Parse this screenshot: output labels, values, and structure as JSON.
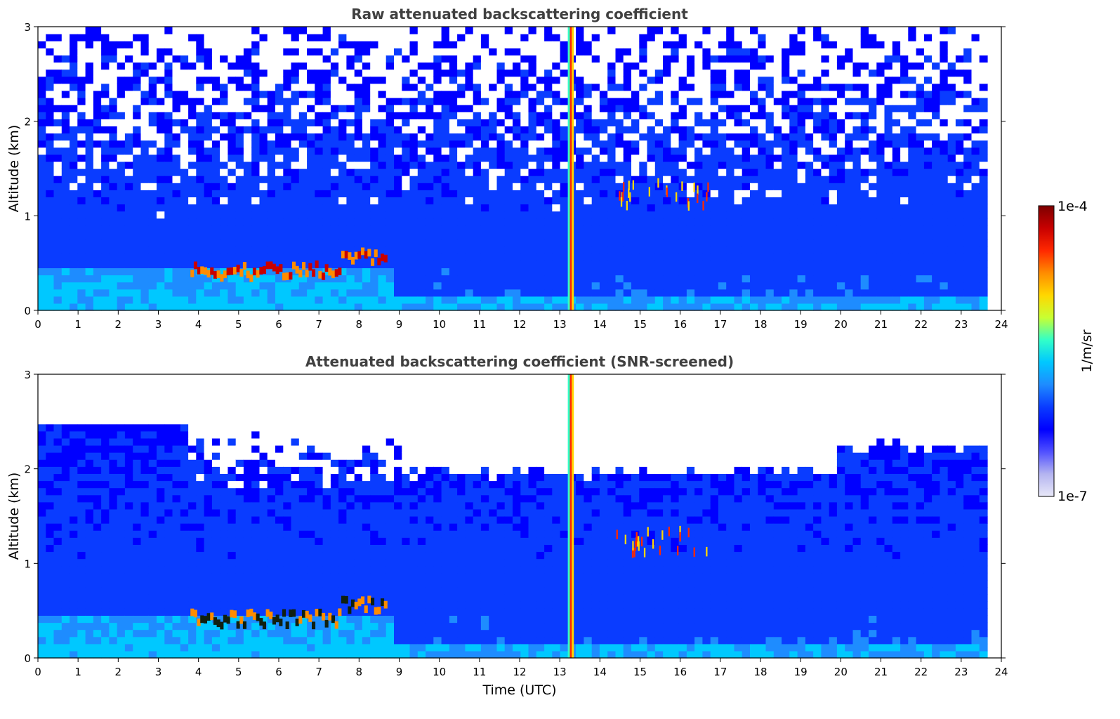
{
  "chart_data": [
    {
      "type": "heatmap",
      "title": "Raw attenuated backscattering coefficient",
      "xlabel": "",
      "ylabel": "Altitude (km)",
      "xlim": [
        0,
        24
      ],
      "ylim": [
        0,
        3
      ],
      "x_ticks": [
        "0",
        "1",
        "2",
        "3",
        "4",
        "5",
        "6",
        "7",
        "8",
        "9",
        "10",
        "11",
        "12",
        "13",
        "14",
        "15",
        "16",
        "17",
        "18",
        "19",
        "20",
        "21",
        "22",
        "23",
        "24"
      ],
      "y_ticks": [
        "0",
        "1",
        "2",
        "3"
      ],
      "data_end_time": 23.65,
      "screened": false,
      "features": [
        {
          "name": "aerosol layer",
          "x": [
            0,
            8.8
          ],
          "y": [
            0,
            0.45
          ]
        },
        {
          "name": "cloud base layer",
          "x": [
            3.8,
            8.7
          ],
          "y": [
            0.3,
            0.6
          ]
        },
        {
          "name": "precipitation streak",
          "x": [
            13.2,
            13.4
          ],
          "y": [
            0,
            3
          ]
        },
        {
          "name": "cloud",
          "x": [
            14.4,
            16.7
          ],
          "y": [
            1.0,
            1.3
          ]
        }
      ]
    },
    {
      "type": "heatmap",
      "title": "Attenuated backscattering coefficient (SNR-screened)",
      "xlabel": "Time (UTC)",
      "ylabel": "Altitude (km)",
      "xlim": [
        0,
        24
      ],
      "ylim": [
        0,
        3
      ],
      "x_ticks": [
        "0",
        "1",
        "2",
        "3",
        "4",
        "5",
        "6",
        "7",
        "8",
        "9",
        "10",
        "11",
        "12",
        "13",
        "14",
        "15",
        "16",
        "17",
        "18",
        "19",
        "20",
        "21",
        "22",
        "23",
        "24"
      ],
      "y_ticks": [
        "0",
        "1",
        "2",
        "3"
      ],
      "data_end_time": 23.65,
      "screened": true
    }
  ],
  "colorbar": {
    "label": "1/m/sr",
    "max_label": "1e-4",
    "min_label": "1e-7",
    "scale": "log",
    "colormap": [
      "#e8e8f8",
      "#b4b4f0",
      "#5050ff",
      "#0000ff",
      "#0a3cff",
      "#1e8cff",
      "#00c8ff",
      "#32ffc8",
      "#c8ff32",
      "#ffd700",
      "#ff8c00",
      "#ff2800",
      "#c80000",
      "#7d0000"
    ]
  }
}
